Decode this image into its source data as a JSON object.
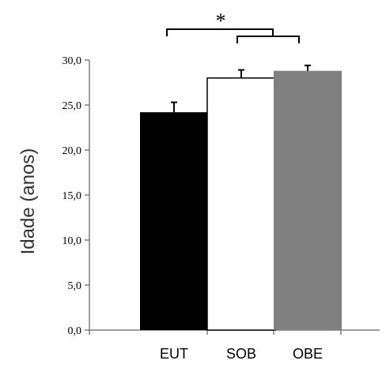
{
  "chart_data": {
    "type": "bar",
    "categories": [
      "EUT",
      "SOB",
      "OBE"
    ],
    "values": [
      24.2,
      28.0,
      28.8
    ],
    "errors": [
      1.1,
      0.9,
      0.6
    ],
    "bar_colors": [
      "#000000",
      "#ffffff",
      "#808080"
    ],
    "ylabel": "Idade (anos)",
    "ylim": [
      0,
      30
    ],
    "yticks": [
      "0,0",
      "5,0",
      "10,0",
      "15,0",
      "20,0",
      "25,0",
      "30,0"
    ],
    "significance_label": "*",
    "grid": false
  }
}
